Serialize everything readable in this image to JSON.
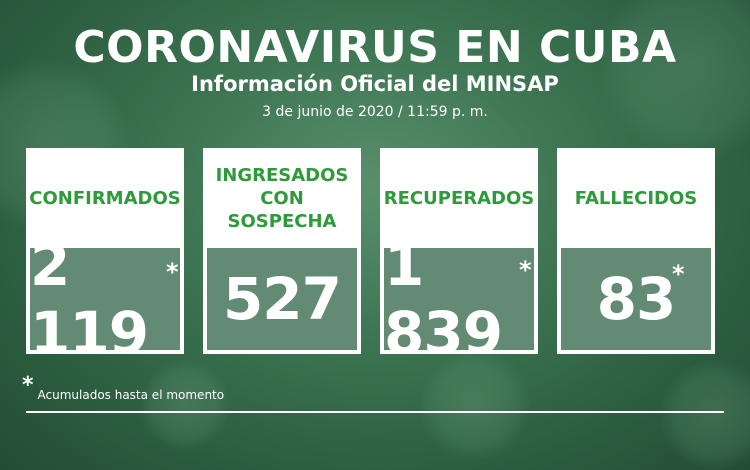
{
  "header": {
    "title": "CORONAVIRUS EN CUBA",
    "subtitle": "Información Oficial del MINSAP",
    "date": "3 de junio de 2020 / 11:59 p. m."
  },
  "cards": [
    {
      "label_lines": [
        "CONFIRMADOS"
      ],
      "value": "2 119",
      "asterisk": "*"
    },
    {
      "label_lines": [
        "INGRESADOS",
        "CON SOSPECHA"
      ],
      "value": "527",
      "asterisk": ""
    },
    {
      "label_lines": [
        "RECUPERADOS"
      ],
      "value": "1 839",
      "asterisk": "*"
    },
    {
      "label_lines": [
        "FALLECIDOS"
      ],
      "value": "83",
      "asterisk": "*"
    }
  ],
  "footnote": {
    "star": "*",
    "text": "Acumulados hasta el momento"
  },
  "colors": {
    "accent_green": "#2f9a3a",
    "background": "#3f7754"
  }
}
